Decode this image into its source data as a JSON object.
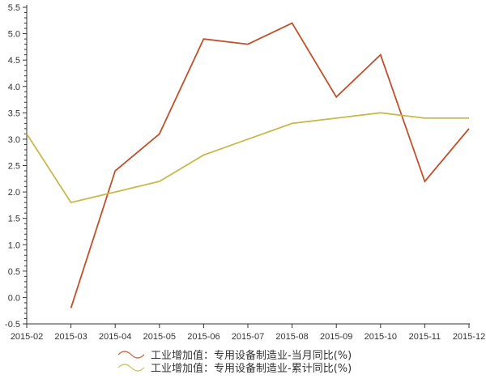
{
  "chart_data": {
    "type": "line",
    "categories": [
      "2015-02",
      "2015-03",
      "2015-04",
      "2015-05",
      "2015-06",
      "2015-07",
      "2015-08",
      "2015-09",
      "2015-10",
      "2015-11",
      "2015-12"
    ],
    "ylim": [
      -0.5,
      5.5
    ],
    "yticks": [
      "-0.5",
      "0.0",
      "0.5",
      "1.0",
      "1.5",
      "2.0",
      "2.5",
      "3.0",
      "3.5",
      "4.0",
      "4.5",
      "5.0",
      "5.5"
    ],
    "grid": false,
    "legend_placement": "bottom",
    "series": [
      {
        "name": "工业增加值：专用设备制造业-当月同比(%)",
        "color": "#c0502a",
        "values": [
          null,
          -0.2,
          2.4,
          3.1,
          4.9,
          4.8,
          5.2,
          3.8,
          4.6,
          2.2,
          3.2
        ]
      },
      {
        "name": "工业增加值：专用设备制造业-累计同比(%)",
        "color": "#c8b94a",
        "values": [
          3.1,
          1.8,
          2.0,
          2.2,
          2.7,
          3.0,
          3.3,
          3.4,
          3.5,
          3.4,
          3.4
        ]
      }
    ]
  }
}
